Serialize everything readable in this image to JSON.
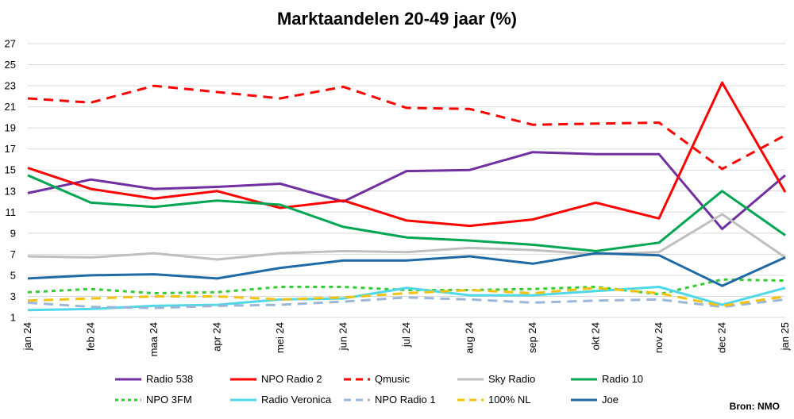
{
  "chart_data": {
    "type": "line",
    "title": "Marktaandelen 20-49 jaar (%)",
    "source": "Bron: NMO",
    "xlabel": "",
    "ylabel": "",
    "ylim": [
      1,
      27
    ],
    "yticks": [
      1,
      3,
      5,
      7,
      9,
      11,
      13,
      15,
      17,
      19,
      21,
      23,
      25,
      27
    ],
    "grid": true,
    "legend_position": "bottom",
    "categories": [
      "jan 24",
      "feb 24",
      "maa 24",
      "apr 24",
      "mei 24",
      "jun 24",
      "jul 24",
      "aug 24",
      "sep 24",
      "okt 24",
      "nov 24",
      "dec 24",
      "jan 25"
    ],
    "series": [
      {
        "name": "Radio 538",
        "color": "#7030a0",
        "dash": "solid",
        "values": [
          12.8,
          14.1,
          13.2,
          13.4,
          13.7,
          12.0,
          14.9,
          15.0,
          16.7,
          16.5,
          16.5,
          9.4,
          14.5
        ]
      },
      {
        "name": "NPO Radio 2",
        "color": "#ff0000",
        "dash": "solid",
        "values": [
          15.2,
          13.2,
          12.3,
          13.0,
          11.4,
          12.1,
          10.2,
          9.7,
          10.3,
          11.9,
          10.4,
          23.3,
          12.9
        ]
      },
      {
        "name": "Qmusic",
        "color": "#ff0000",
        "dash": "dashed",
        "values": [
          21.8,
          21.4,
          23.0,
          22.4,
          21.8,
          22.9,
          20.9,
          20.8,
          19.3,
          19.4,
          19.5,
          15.1,
          18.3
        ]
      },
      {
        "name": "Sky Radio",
        "color": "#bfbfbf",
        "dash": "solid",
        "values": [
          6.8,
          6.7,
          7.1,
          6.5,
          7.1,
          7.3,
          7.2,
          7.6,
          7.4,
          7.0,
          7.2,
          10.8,
          6.7
        ]
      },
      {
        "name": "Radio 10",
        "color": "#00a651",
        "dash": "solid",
        "values": [
          14.5,
          11.9,
          11.5,
          12.1,
          11.7,
          9.6,
          8.6,
          8.3,
          7.9,
          7.3,
          8.1,
          13.0,
          8.8
        ]
      },
      {
        "name": "NPO 3FM",
        "color": "#33cc33",
        "dash": "dotted",
        "values": [
          3.4,
          3.7,
          3.3,
          3.4,
          3.9,
          3.9,
          3.6,
          3.6,
          3.7,
          3.9,
          3.2,
          4.6,
          4.5
        ]
      },
      {
        "name": "Radio Veronica",
        "color": "#4fd8e8",
        "dash": "solid",
        "values": [
          1.7,
          1.8,
          2.1,
          2.2,
          2.7,
          2.8,
          3.8,
          3.1,
          3.1,
          3.5,
          3.9,
          2.2,
          3.8
        ]
      },
      {
        "name": "NPO Radio 1",
        "color": "#9ab7d8",
        "dash": "dashed",
        "values": [
          2.4,
          2.0,
          1.9,
          2.1,
          2.2,
          2.5,
          2.9,
          2.7,
          2.4,
          2.6,
          2.7,
          2.0,
          2.7
        ]
      },
      {
        "name": "100% NL",
        "color": "#f4c20d",
        "dash": "dashed",
        "values": [
          2.6,
          2.8,
          3.0,
          3.0,
          2.7,
          2.9,
          3.3,
          3.6,
          3.3,
          3.8,
          3.3,
          2.1,
          3.0
        ]
      },
      {
        "name": "Joe",
        "color": "#1f6aa5",
        "dash": "solid",
        "values": [
          4.7,
          5.0,
          5.1,
          4.7,
          5.7,
          6.4,
          6.4,
          6.8,
          6.1,
          7.1,
          6.9,
          4.0,
          6.7
        ]
      }
    ]
  }
}
